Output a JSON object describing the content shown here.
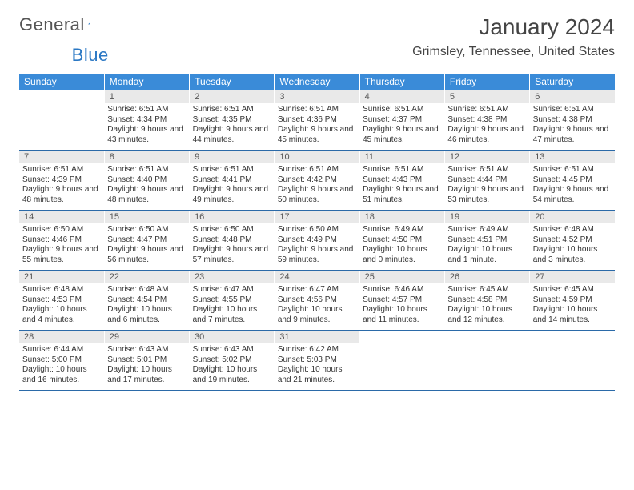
{
  "logo": {
    "text1": "General",
    "text2": "Blue"
  },
  "title": "January 2024",
  "location": "Grimsley, Tennessee, United States",
  "daysOfWeek": [
    "Sunday",
    "Monday",
    "Tuesday",
    "Wednesday",
    "Thursday",
    "Friday",
    "Saturday"
  ],
  "colors": {
    "headerBg": "#3a8bd8",
    "headerText": "#ffffff",
    "dayNumBg": "#e9e9e9",
    "rowBorder": "#2b6aa8",
    "logoBlue": "#2b78c4"
  },
  "weeks": [
    [
      {
        "n": "",
        "lines": []
      },
      {
        "n": "1",
        "lines": [
          "Sunrise: 6:51 AM",
          "Sunset: 4:34 PM",
          "Daylight: 9 hours and 43 minutes."
        ]
      },
      {
        "n": "2",
        "lines": [
          "Sunrise: 6:51 AM",
          "Sunset: 4:35 PM",
          "Daylight: 9 hours and 44 minutes."
        ]
      },
      {
        "n": "3",
        "lines": [
          "Sunrise: 6:51 AM",
          "Sunset: 4:36 PM",
          "Daylight: 9 hours and 45 minutes."
        ]
      },
      {
        "n": "4",
        "lines": [
          "Sunrise: 6:51 AM",
          "Sunset: 4:37 PM",
          "Daylight: 9 hours and 45 minutes."
        ]
      },
      {
        "n": "5",
        "lines": [
          "Sunrise: 6:51 AM",
          "Sunset: 4:38 PM",
          "Daylight: 9 hours and 46 minutes."
        ]
      },
      {
        "n": "6",
        "lines": [
          "Sunrise: 6:51 AM",
          "Sunset: 4:38 PM",
          "Daylight: 9 hours and 47 minutes."
        ]
      }
    ],
    [
      {
        "n": "7",
        "lines": [
          "Sunrise: 6:51 AM",
          "Sunset: 4:39 PM",
          "Daylight: 9 hours and 48 minutes."
        ]
      },
      {
        "n": "8",
        "lines": [
          "Sunrise: 6:51 AM",
          "Sunset: 4:40 PM",
          "Daylight: 9 hours and 48 minutes."
        ]
      },
      {
        "n": "9",
        "lines": [
          "Sunrise: 6:51 AM",
          "Sunset: 4:41 PM",
          "Daylight: 9 hours and 49 minutes."
        ]
      },
      {
        "n": "10",
        "lines": [
          "Sunrise: 6:51 AM",
          "Sunset: 4:42 PM",
          "Daylight: 9 hours and 50 minutes."
        ]
      },
      {
        "n": "11",
        "lines": [
          "Sunrise: 6:51 AM",
          "Sunset: 4:43 PM",
          "Daylight: 9 hours and 51 minutes."
        ]
      },
      {
        "n": "12",
        "lines": [
          "Sunrise: 6:51 AM",
          "Sunset: 4:44 PM",
          "Daylight: 9 hours and 53 minutes."
        ]
      },
      {
        "n": "13",
        "lines": [
          "Sunrise: 6:51 AM",
          "Sunset: 4:45 PM",
          "Daylight: 9 hours and 54 minutes."
        ]
      }
    ],
    [
      {
        "n": "14",
        "lines": [
          "Sunrise: 6:50 AM",
          "Sunset: 4:46 PM",
          "Daylight: 9 hours and 55 minutes."
        ]
      },
      {
        "n": "15",
        "lines": [
          "Sunrise: 6:50 AM",
          "Sunset: 4:47 PM",
          "Daylight: 9 hours and 56 minutes."
        ]
      },
      {
        "n": "16",
        "lines": [
          "Sunrise: 6:50 AM",
          "Sunset: 4:48 PM",
          "Daylight: 9 hours and 57 minutes."
        ]
      },
      {
        "n": "17",
        "lines": [
          "Sunrise: 6:50 AM",
          "Sunset: 4:49 PM",
          "Daylight: 9 hours and 59 minutes."
        ]
      },
      {
        "n": "18",
        "lines": [
          "Sunrise: 6:49 AM",
          "Sunset: 4:50 PM",
          "Daylight: 10 hours and 0 minutes."
        ]
      },
      {
        "n": "19",
        "lines": [
          "Sunrise: 6:49 AM",
          "Sunset: 4:51 PM",
          "Daylight: 10 hours and 1 minute."
        ]
      },
      {
        "n": "20",
        "lines": [
          "Sunrise: 6:48 AM",
          "Sunset: 4:52 PM",
          "Daylight: 10 hours and 3 minutes."
        ]
      }
    ],
    [
      {
        "n": "21",
        "lines": [
          "Sunrise: 6:48 AM",
          "Sunset: 4:53 PM",
          "Daylight: 10 hours and 4 minutes."
        ]
      },
      {
        "n": "22",
        "lines": [
          "Sunrise: 6:48 AM",
          "Sunset: 4:54 PM",
          "Daylight: 10 hours and 6 minutes."
        ]
      },
      {
        "n": "23",
        "lines": [
          "Sunrise: 6:47 AM",
          "Sunset: 4:55 PM",
          "Daylight: 10 hours and 7 minutes."
        ]
      },
      {
        "n": "24",
        "lines": [
          "Sunrise: 6:47 AM",
          "Sunset: 4:56 PM",
          "Daylight: 10 hours and 9 minutes."
        ]
      },
      {
        "n": "25",
        "lines": [
          "Sunrise: 6:46 AM",
          "Sunset: 4:57 PM",
          "Daylight: 10 hours and 11 minutes."
        ]
      },
      {
        "n": "26",
        "lines": [
          "Sunrise: 6:45 AM",
          "Sunset: 4:58 PM",
          "Daylight: 10 hours and 12 minutes."
        ]
      },
      {
        "n": "27",
        "lines": [
          "Sunrise: 6:45 AM",
          "Sunset: 4:59 PM",
          "Daylight: 10 hours and 14 minutes."
        ]
      }
    ],
    [
      {
        "n": "28",
        "lines": [
          "Sunrise: 6:44 AM",
          "Sunset: 5:00 PM",
          "Daylight: 10 hours and 16 minutes."
        ]
      },
      {
        "n": "29",
        "lines": [
          "Sunrise: 6:43 AM",
          "Sunset: 5:01 PM",
          "Daylight: 10 hours and 17 minutes."
        ]
      },
      {
        "n": "30",
        "lines": [
          "Sunrise: 6:43 AM",
          "Sunset: 5:02 PM",
          "Daylight: 10 hours and 19 minutes."
        ]
      },
      {
        "n": "31",
        "lines": [
          "Sunrise: 6:42 AM",
          "Sunset: 5:03 PM",
          "Daylight: 10 hours and 21 minutes."
        ]
      },
      {
        "n": "",
        "lines": []
      },
      {
        "n": "",
        "lines": []
      },
      {
        "n": "",
        "lines": []
      }
    ]
  ]
}
